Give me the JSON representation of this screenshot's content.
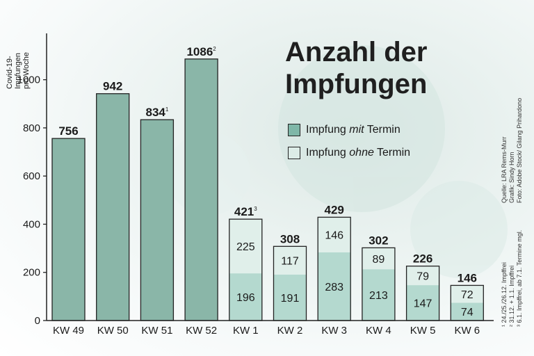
{
  "chart_data": {
    "type": "bar",
    "title_lines": [
      "Anzahl der",
      "Impfungen"
    ],
    "ylabel_lines": [
      "Covid-19-",
      "Impfungen",
      "pro Woche"
    ],
    "ylim": [
      0,
      1100
    ],
    "yticks": [
      0,
      200,
      400,
      600,
      800,
      1000
    ],
    "categories": [
      "KW 49",
      "KW 50",
      "KW 51",
      "KW 52",
      "KW 1",
      "KW 2",
      "KW 3",
      "KW 4",
      "KW 5",
      "KW 6"
    ],
    "totals": [
      756,
      942,
      834,
      1086,
      421,
      308,
      429,
      302,
      226,
      146
    ],
    "total_labels": [
      "756",
      "942",
      "834",
      "1086",
      "421",
      "308",
      "429",
      "302",
      "226",
      "146"
    ],
    "total_footnotes": [
      "",
      "",
      "1",
      "2",
      "3",
      "",
      "",
      "",
      "",
      ""
    ],
    "series": [
      {
        "name": "Impfung mit Termin",
        "values": [
          756,
          942,
          834,
          1086,
          196,
          191,
          283,
          213,
          147,
          74
        ],
        "show_labels": [
          false,
          false,
          false,
          false,
          true,
          true,
          true,
          true,
          true,
          true
        ]
      },
      {
        "name": "Impfung ohne Termin",
        "values": [
          0,
          0,
          0,
          0,
          225,
          117,
          146,
          89,
          79,
          72
        ],
        "show_labels": [
          false,
          false,
          false,
          false,
          true,
          true,
          true,
          true,
          true,
          true
        ]
      }
    ],
    "legend": [
      {
        "before": "Impfung ",
        "emph": "mit",
        "after": " Termin",
        "color": "#7fb7a8"
      },
      {
        "before": "Impfung ",
        "emph": "ohne",
        "after": " Termin",
        "color": "#dcece7"
      }
    ],
    "colors": {
      "solid_bar": "#8ab6a8",
      "mit": "#b4d9cf",
      "ohne": "#e0efea",
      "outline": "#222222"
    },
    "credits": [
      "Quelle: LRA Rems-Murr",
      "Grafik: Sindy Horn",
      "Foto: Adobe Stock/ Gilang Prihardono"
    ],
    "footnotes": [
      "¹ 24./25./26.12. Impffrei",
      "² 31.12. + 1.1. Impffrei",
      "³ 6.1. Impffrei, ab 7.1. Termine mgl."
    ]
  }
}
